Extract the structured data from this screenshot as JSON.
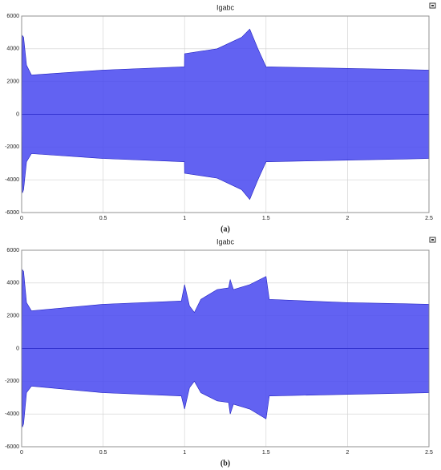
{
  "chart_data": [
    {
      "type": "area",
      "title": "Igabc",
      "caption": "(a)",
      "x": [
        0,
        0.005,
        0.012,
        0.03,
        0.06,
        0.5,
        0.999,
        1.0,
        1.2,
        1.35,
        1.4,
        1.45,
        1.5,
        2.0,
        2.5
      ],
      "series": [
        {
          "color": "#4646f0",
          "values": [
            0,
            4800,
            4700,
            3000,
            2400,
            2700,
            2900,
            3700,
            4000,
            4700,
            5200,
            4000,
            2900,
            2800,
            2700
          ]
        },
        {
          "color": "#4646f0",
          "values": [
            0,
            -4800,
            -4600,
            -2900,
            -2400,
            -2700,
            -2900,
            -3600,
            -3900,
            -4600,
            -5200,
            -4000,
            -2900,
            -2800,
            -2700
          ]
        }
      ],
      "xlim": [
        0,
        2.5
      ],
      "xticks": [
        0,
        0.5,
        1,
        1.5,
        2,
        2.5
      ],
      "ylim": [
        -6000,
        6000
      ],
      "yticks": [
        -6000,
        -4000,
        -2000,
        0,
        2000,
        4000,
        6000
      ],
      "grid": true
    },
    {
      "type": "area",
      "title": "Igabc",
      "caption": "(b)",
      "x": [
        0,
        0.005,
        0.012,
        0.03,
        0.06,
        0.5,
        0.98,
        1.0,
        1.03,
        1.06,
        1.1,
        1.2,
        1.27,
        1.28,
        1.3,
        1.4,
        1.5,
        1.52,
        2.0,
        2.5
      ],
      "series": [
        {
          "color": "#4646f0",
          "values": [
            0,
            4800,
            4700,
            2800,
            2300,
            2700,
            2900,
            3900,
            2600,
            2200,
            3000,
            3600,
            3700,
            4200,
            3600,
            3900,
            4400,
            3000,
            2800,
            2700
          ]
        },
        {
          "color": "#4646f0",
          "values": [
            0,
            -4800,
            -4600,
            -2700,
            -2300,
            -2700,
            -2900,
            -3700,
            -2400,
            -2000,
            -2700,
            -3200,
            -3300,
            -4000,
            -3400,
            -3700,
            -4300,
            -2900,
            -2800,
            -2700
          ]
        }
      ],
      "xlim": [
        0,
        2.5
      ],
      "xticks": [
        0,
        0.5,
        1,
        1.5,
        2,
        2.5
      ],
      "ylim": [
        -6000,
        6000
      ],
      "yticks": [
        -6000,
        -4000,
        -2000,
        0,
        2000,
        4000,
        6000
      ],
      "grid": true
    }
  ]
}
